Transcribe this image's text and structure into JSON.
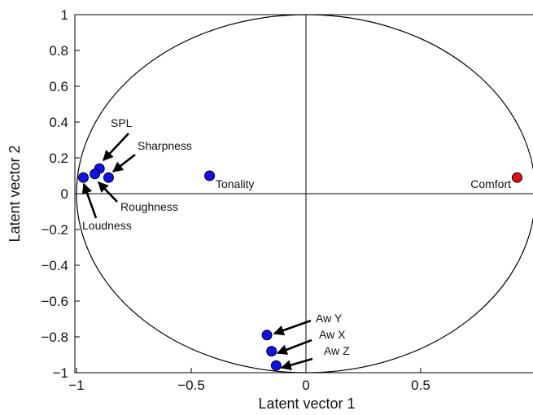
{
  "chart_data": {
    "type": "scatter",
    "xlabel": "Latent vector 1",
    "ylabel": "Latent vector 2",
    "xlim": [
      -1,
      1
    ],
    "ylim": [
      -1,
      1
    ],
    "xticks": [
      {
        "value": -1,
        "label": "−1"
      },
      {
        "value": -0.5,
        "label": "−0.5"
      },
      {
        "value": 0,
        "label": "0"
      },
      {
        "value": 0.5,
        "label": "0.5"
      }
    ],
    "yticks": [
      {
        "value": 1,
        "label": "1"
      },
      {
        "value": 0.8,
        "label": "0.8"
      },
      {
        "value": 0.6,
        "label": "0.6"
      },
      {
        "value": 0.4,
        "label": "0.4"
      },
      {
        "value": 0.2,
        "label": "0.2"
      },
      {
        "value": 0,
        "label": "0"
      },
      {
        "value": -0.2,
        "label": "−0.2"
      },
      {
        "value": -0.4,
        "label": "−0.4"
      },
      {
        "value": -0.6,
        "label": "−0.6"
      },
      {
        "value": -0.8,
        "label": "−0.8"
      },
      {
        "value": -1,
        "label": "−1"
      }
    ],
    "grid": false,
    "unit_circle": true,
    "origin_lines": true,
    "colors": {
      "predictor": "#1010ee",
      "response": "#e01010",
      "outline": "#000000"
    },
    "points": [
      {
        "label": "Loudness",
        "x": -0.97,
        "y": 0.09,
        "group": "predictor"
      },
      {
        "label": "SPL",
        "x": -0.9,
        "y": 0.14,
        "group": "predictor"
      },
      {
        "label": "",
        "x": -0.92,
        "y": 0.11,
        "group": "predictor"
      },
      {
        "label": "Sharpness",
        "x": -0.86,
        "y": 0.09,
        "group": "predictor"
      },
      {
        "label": "Tonality",
        "x": -0.42,
        "y": 0.1,
        "group": "predictor"
      },
      {
        "label": "Comfort",
        "x": 0.92,
        "y": 0.09,
        "group": "response"
      },
      {
        "label": "Aw Y",
        "x": -0.17,
        "y": -0.79,
        "group": "predictor"
      },
      {
        "label": "Aw X",
        "x": -0.15,
        "y": -0.88,
        "group": "predictor"
      },
      {
        "label": "Aw Z",
        "x": -0.13,
        "y": -0.96,
        "group": "predictor"
      }
    ],
    "annotations": [
      {
        "text": "SPL",
        "arrow": true
      },
      {
        "text": "Sharpness",
        "arrow": true
      },
      {
        "text": "Roughness",
        "arrow": true
      },
      {
        "text": "Loudness",
        "arrow": true
      },
      {
        "text": "Tonality",
        "arrow": false
      },
      {
        "text": "Comfort",
        "arrow": false
      },
      {
        "text": "Aw Y",
        "arrow": true
      },
      {
        "text": "Aw X",
        "arrow": true
      },
      {
        "text": "Aw Z",
        "arrow": true
      }
    ]
  }
}
